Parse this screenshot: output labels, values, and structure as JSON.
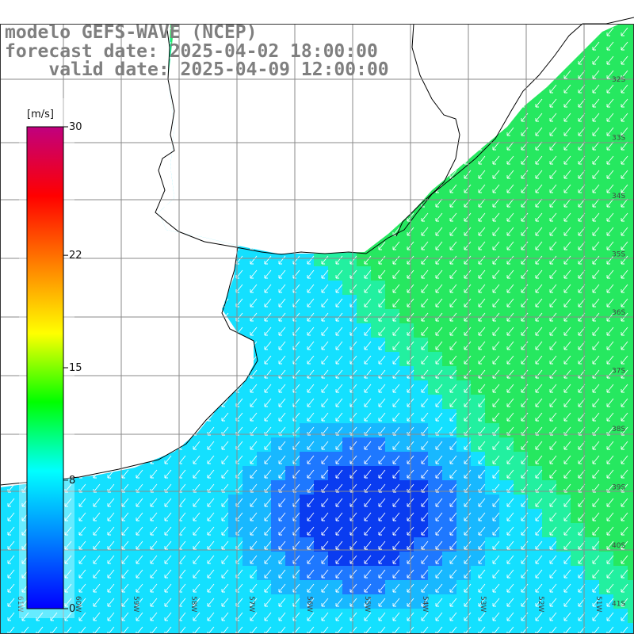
{
  "title": {
    "line1": "modelo GEFS-WAVE (NCEP)",
    "line2": "forecast date: 2025-04-02 18:00:00",
    "line3": "    valid date: 2025-04-09 12:00:00"
  },
  "colorbar": {
    "unit_label": "[m/s]",
    "tick_labels": [
      "30",
      "22",
      "15",
      "8",
      "0"
    ],
    "tick_values": [
      30,
      22,
      15,
      8,
      0
    ],
    "range": [
      0,
      30
    ],
    "colors": [
      "#0000ff",
      "#0080ff",
      "#00ffff",
      "#00ff00",
      "#ffff00",
      "#ff8000",
      "#ff0000",
      "#c0007f"
    ]
  },
  "map": {
    "lat_labels": [
      "32S",
      "33S",
      "34S",
      "35S",
      "36S",
      "37S",
      "38S",
      "39S",
      "40S",
      "41S"
    ],
    "lon_labels": [
      "61W",
      "60W",
      "59W",
      "58W",
      "57W",
      "56W",
      "55W",
      "54W",
      "53W",
      "52W",
      "51W"
    ],
    "grid": true,
    "land_color": "#ffffff",
    "coastline_color": "#000000",
    "arrow_color": "#ffffff",
    "variable": "wind speed and direction"
  }
}
